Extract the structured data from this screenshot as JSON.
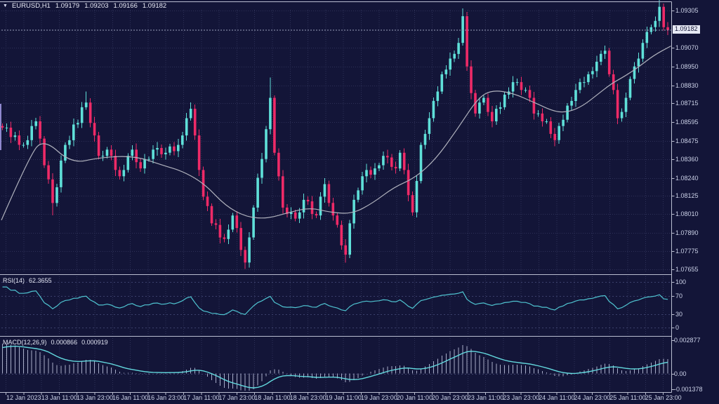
{
  "header": {
    "symbol": "EURUSD,H1",
    "open": "1.09179",
    "high": "1.09203",
    "low": "1.09166",
    "close": "1.09182"
  },
  "colors": {
    "background": "#131538",
    "grid": "#2e3158",
    "level": "#3c406c",
    "bull": "#5fe0d9",
    "bear": "#ee2a67",
    "ma": "#b0b2bd",
    "rsi_line": "#4fc3d0",
    "macd_signal": "#63d9de",
    "macd_hist": "#a8adc9",
    "border": "#b9bdd0",
    "axis_text": "#ccd2e8",
    "current_price_bg": "#e6e9f4",
    "current_price_text": "#101233",
    "current_price_line": "#9ba1bc",
    "partial_candle": "#8f88cf"
  },
  "price_axis": {
    "ticks": [
      "1.09305",
      "1.09070",
      "1.08950",
      "1.08830",
      "1.08715",
      "1.08595",
      "1.08475",
      "1.08360",
      "1.08240",
      "1.08125",
      "1.08010",
      "1.07890",
      "1.07775",
      "1.07655"
    ],
    "current": "1.09182"
  },
  "time_axis": {
    "ticks": [
      "12 Jan 2023",
      "13 Jan 11:00",
      "13 Jan 23:00",
      "16 Jan 11:00",
      "16 Jan 23:00",
      "17 Jan 11:00",
      "17 Jan 23:00",
      "18 Jan 11:00",
      "18 Jan 23:00",
      "19 Jan 11:00",
      "19 Jan 23:00",
      "20 Jan 11:00",
      "20 Jan 23:00",
      "23 Jan 11:00",
      "23 Jan 23:00",
      "24 Jan 11:00",
      "24 Jan 23:00",
      "25 Jan 11:00",
      "25 Jan 23:00"
    ]
  },
  "rsi": {
    "label": "RSI(14)",
    "value": "62.3655",
    "axis": [
      "100",
      "70",
      "30",
      "0"
    ],
    "levels": [
      100,
      70,
      30,
      0
    ]
  },
  "macd": {
    "label": "MACD(12,26,9)",
    "value1": "0.000866",
    "value2": "0.000919",
    "axis": [
      "0.002877",
      "0.00",
      "-0.001378"
    ]
  },
  "chart_data": {
    "type": "candlestick",
    "symbol": "EURUSD",
    "timeframe": "H1",
    "title": "EURUSD,H1 candlestick chart with MA, RSI(14) and MACD(12,26,9)",
    "x_range": [
      "12 Jan 2023",
      "25 Jan 23:00"
    ],
    "price_range": [
      1.0763,
      1.0936
    ],
    "ohlc_display": {
      "open": 1.09179,
      "high": 1.09203,
      "low": 1.09166,
      "close": 1.09182
    },
    "first_open": 1.0857,
    "closes": [
      1.0856,
      1.0856,
      1.085,
      1.0851,
      1.0845,
      1.0845,
      1.0848,
      1.0857,
      1.086,
      1.0849,
      1.0832,
      1.0823,
      1.0808,
      1.0818,
      1.0835,
      1.0845,
      1.0848,
      1.0858,
      1.0859,
      1.0869,
      1.0872,
      1.0859,
      1.0851,
      1.0838,
      1.0838,
      1.0842,
      1.0838,
      1.0829,
      1.0825,
      1.0829,
      1.0838,
      1.0842,
      1.0834,
      1.083,
      1.0836,
      1.0836,
      1.0842,
      1.0843,
      1.0839,
      1.084,
      1.0844,
      1.0841,
      1.0845,
      1.0851,
      1.0862,
      1.0868,
      1.0851,
      1.0829,
      1.0812,
      1.0806,
      1.0795,
      1.0794,
      1.0786,
      1.0785,
      1.0791,
      1.08,
      1.0792,
      1.0778,
      1.077,
      1.0786,
      1.0805,
      1.0824,
      1.0836,
      1.0855,
      1.0875,
      1.084,
      1.0825,
      1.0805,
      1.0801,
      1.0802,
      1.0798,
      1.0802,
      1.081,
      1.0809,
      1.0801,
      1.08,
      1.0812,
      1.082,
      1.0808,
      1.08,
      1.0794,
      1.0781,
      1.0775,
      1.0795,
      1.081,
      1.0816,
      1.0825,
      1.0829,
      1.0826,
      1.083,
      1.0832,
      1.0838,
      1.0837,
      1.0831,
      1.083,
      1.084,
      1.0829,
      1.0813,
      1.0802,
      1.0822,
      1.0845,
      1.0852,
      1.0862,
      1.0873,
      1.0879,
      1.089,
      1.0893,
      1.09,
      1.0903,
      1.091,
      1.0927,
      1.0895,
      1.0878,
      1.0865,
      1.0872,
      1.0875,
      1.0866,
      1.086,
      1.0868,
      1.0869,
      1.0877,
      1.0879,
      1.0885,
      1.0885,
      1.088,
      1.088,
      1.0875,
      1.0865,
      1.0865,
      1.086,
      1.086,
      1.0852,
      1.0848,
      1.0857,
      1.0861,
      1.087,
      1.0873,
      1.088,
      1.0885,
      1.0885,
      1.089,
      1.0892,
      1.0898,
      1.0903,
      1.0905,
      1.089,
      1.088,
      1.0862,
      1.0866,
      1.0875,
      1.0887,
      1.0895,
      1.09,
      1.091,
      1.0917,
      1.092,
      1.0924,
      1.0933,
      1.092,
      1.09182
    ],
    "wick_overrides": {
      "12": {
        "l": 1.08
      },
      "20": {
        "h": 1.0879
      },
      "45": {
        "h": 1.0872
      },
      "58": {
        "l": 1.0766
      },
      "64": {
        "h": 1.0888
      },
      "82": {
        "l": 1.077
      },
      "110": {
        "h": 1.0932
      },
      "157": {
        "h": 1.0938
      }
    },
    "prehistory": [
      1.073,
      1.0735,
      1.0733,
      1.074,
      1.0745,
      1.0743,
      1.075,
      1.0756,
      1.0754,
      1.0762,
      1.0768,
      1.0766,
      1.0774,
      1.078,
      1.0778,
      1.0786,
      1.0792,
      1.079,
      1.0798,
      1.0805,
      1.0803,
      1.0812,
      1.082,
      1.0818,
      1.0828,
      1.0836,
      1.0834,
      1.0845,
      1.0852,
      1.0857
    ],
    "ma_points": [
      [
        0,
        1.0797
      ],
      [
        0.042,
        1.0838
      ],
      [
        0.063,
        1.0849
      ],
      [
        0.105,
        1.0833
      ],
      [
        0.147,
        1.0837
      ],
      [
        0.199,
        1.0838
      ],
      [
        0.241,
        1.0832
      ],
      [
        0.272,
        1.0828
      ],
      [
        0.304,
        1.082
      ],
      [
        0.335,
        1.0806
      ],
      [
        0.366,
        1.0799
      ],
      [
        0.398,
        1.0798
      ],
      [
        0.429,
        1.0802
      ],
      [
        0.461,
        1.0805
      ],
      [
        0.492,
        1.0802
      ],
      [
        0.524,
        1.0801
      ],
      [
        0.555,
        1.0808
      ],
      [
        0.586,
        1.0818
      ],
      [
        0.618,
        1.0824
      ],
      [
        0.649,
        1.0836
      ],
      [
        0.681,
        1.0855
      ],
      [
        0.712,
        1.0875
      ],
      [
        0.733,
        1.088
      ],
      [
        0.764,
        1.0878
      ],
      [
        0.796,
        1.0872
      ],
      [
        0.827,
        1.0866
      ],
      [
        0.848,
        1.0866
      ],
      [
        0.869,
        1.087
      ],
      [
        0.89,
        1.0877
      ],
      [
        0.911,
        1.0884
      ],
      [
        0.932,
        1.0889
      ],
      [
        0.953,
        1.0895
      ],
      [
        0.974,
        1.0902
      ],
      [
        1.0,
        1.0908
      ]
    ],
    "rsi_final": 62.3655,
    "macd_final": [
      0.000866,
      0.000919
    ],
    "macd_axis_range": [
      -0.001378,
      0.002877
    ]
  }
}
